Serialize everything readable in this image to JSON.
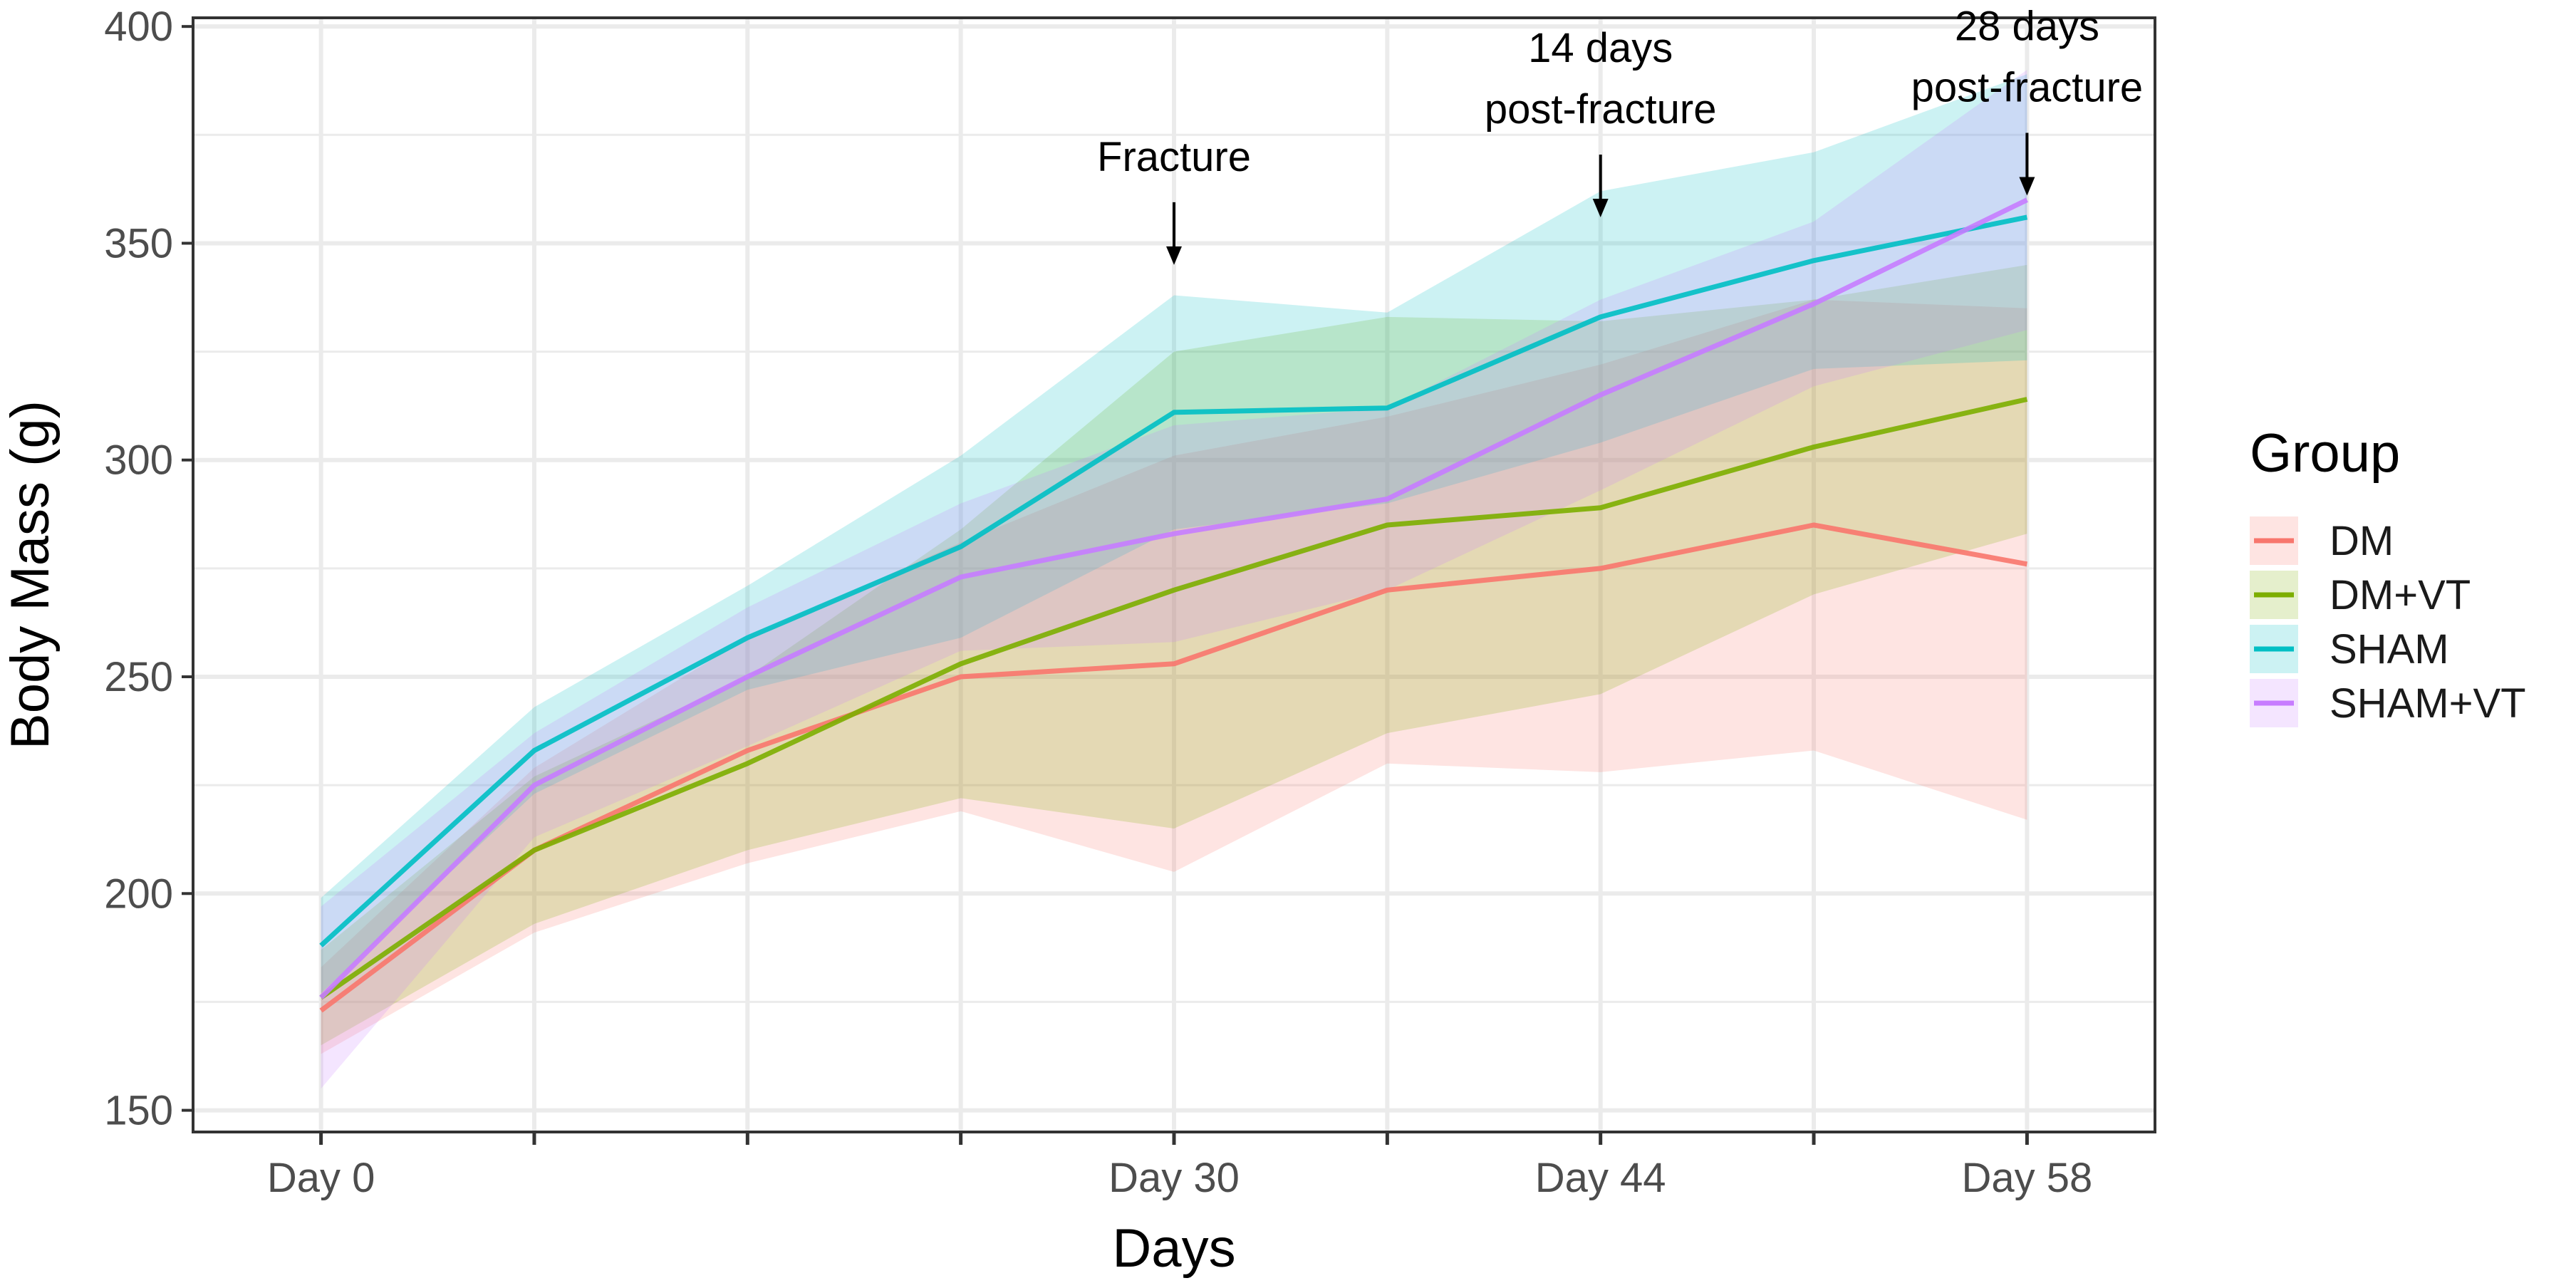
{
  "chart_data": {
    "type": "line",
    "title": "",
    "xlabel": "Days",
    "ylabel": "Body Mass (g)",
    "ylim": [
      145,
      402
    ],
    "xlim": [
      -0.6,
      8.6
    ],
    "yticks": [
      150,
      200,
      250,
      300,
      350,
      400
    ],
    "x": [
      0,
      1,
      2,
      3,
      4,
      5,
      6,
      7,
      8
    ],
    "xtick_labels": [
      {
        "x": 0,
        "label": "Day 0"
      },
      {
        "x": 4,
        "label": "Day 30"
      },
      {
        "x": 6,
        "label": "Day 44"
      },
      {
        "x": 8,
        "label": "Day 58"
      }
    ],
    "grid": true,
    "legend": {
      "title": "Group",
      "position": "right"
    },
    "series": [
      {
        "name": "DM",
        "color": "#F8766D",
        "values": [
          173,
          210,
          233,
          250,
          253,
          270,
          275,
          285,
          276
        ],
        "lower": [
          163,
          191,
          207,
          219,
          205,
          230,
          228,
          233,
          217
        ],
        "upper": [
          183,
          229,
          259,
          281,
          301,
          310,
          322,
          337,
          335
        ]
      },
      {
        "name": "DM+VT",
        "color": "#7CAE00",
        "values": [
          176,
          210,
          230,
          253,
          270,
          285,
          289,
          303,
          314
        ],
        "lower": [
          165,
          193,
          210,
          222,
          215,
          237,
          246,
          269,
          283
        ],
        "upper": [
          187,
          227,
          250,
          284,
          325,
          333,
          332,
          337,
          345
        ]
      },
      {
        "name": "SHAM",
        "color": "#00BFC4",
        "values": [
          188,
          233,
          259,
          280,
          311,
          312,
          333,
          346,
          356
        ],
        "lower": [
          177,
          223,
          247,
          259,
          284,
          290,
          304,
          321,
          323
        ],
        "upper": [
          199,
          243,
          271,
          301,
          338,
          334,
          362,
          371,
          389
        ]
      },
      {
        "name": "SHAM+VT",
        "color": "#C77CFF",
        "values": [
          176,
          225,
          250,
          273,
          283,
          291,
          315,
          336,
          360
        ],
        "lower": [
          155,
          213,
          234,
          256,
          258,
          270,
          293,
          317,
          330
        ],
        "upper": [
          197,
          237,
          266,
          290,
          308,
          312,
          337,
          355,
          390
        ]
      }
    ],
    "annotations": [
      {
        "x": 4,
        "lines": [
          "Fracture"
        ],
        "arrow_to": 345
      },
      {
        "x": 6,
        "lines": [
          "14 days",
          "post-fracture"
        ],
        "arrow_to": 356
      },
      {
        "x": 8,
        "lines": [
          "28 days",
          "post-fracture"
        ],
        "arrow_to": 361
      }
    ]
  }
}
